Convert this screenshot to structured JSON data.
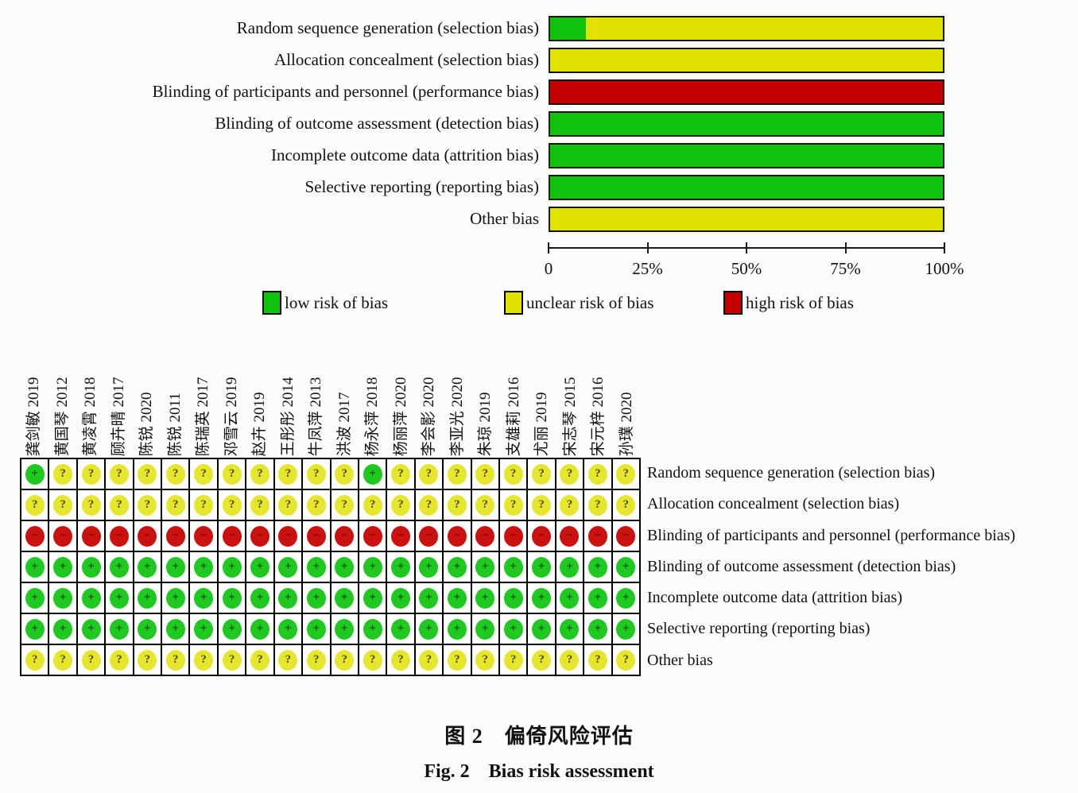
{
  "colors": {
    "low": "#0ec40e",
    "unclear": "#e2e200",
    "high": "#c40000",
    "circle_low": "#1fc91f",
    "circle_unclear": "#e6e62e",
    "circle_high": "#cc1111",
    "symbol_dark": "#1a1a00"
  },
  "chart_data": {
    "type": "bar",
    "orientation": "horizontal-stacked",
    "title": "",
    "categories": [
      "Random sequence generation (selection bias)",
      "Allocation concealment (selection bias)",
      "Blinding of participants and personnel (performance bias)",
      "Blinding of outcome assessment (detection bias)",
      "Incomplete outcome data (attrition bias)",
      "Selective reporting (reporting bias)",
      "Other bias"
    ],
    "series": [
      {
        "name": "low risk of bias",
        "color_key": "low",
        "values": [
          9.1,
          0,
          0,
          100,
          100,
          100,
          0
        ]
      },
      {
        "name": "unclear risk of bias",
        "color_key": "unclear",
        "values": [
          90.9,
          100,
          0,
          0,
          0,
          0,
          100
        ]
      },
      {
        "name": "high risk of bias",
        "color_key": "high",
        "values": [
          0,
          0,
          100,
          0,
          0,
          0,
          0
        ]
      }
    ],
    "xlim": [
      0,
      100
    ],
    "ticks": [
      {
        "label": "0",
        "value": 0
      },
      {
        "label": "25%",
        "value": 25
      },
      {
        "label": "50%",
        "value": 50
      },
      {
        "label": "75%",
        "value": 75
      },
      {
        "label": "100%",
        "value": 100
      }
    ],
    "legend": [
      {
        "label": "low risk of bias",
        "color_key": "low"
      },
      {
        "label": "unclear risk of bias",
        "color_key": "unclear"
      },
      {
        "label": "high risk of bias",
        "color_key": "high"
      }
    ],
    "legend_position": "bottom"
  },
  "matrix": {
    "studies": [
      "龚剑敏 2019",
      "黄国琴 2012",
      "黄凌霄 2018",
      "顾卉晴 2017",
      "陈锐 2020",
      "陈锐 2011",
      "陈瑞英 2017",
      "邓雪云 2019",
      "赵卉 2019",
      "王彤彤 2014",
      "牛凤萍 2013",
      "洪波 2017",
      "杨永萍 2018",
      "杨丽萍 2020",
      "李会影 2020",
      "李亚光 2020",
      "朱琼 2019",
      "支雄莉 2016",
      "尤丽 2019",
      "宋志琴 2015",
      "宋元梓 2016",
      "孙璞 2020"
    ],
    "domains": [
      "Random sequence generation (selection bias)",
      "Allocation concealment (selection bias)",
      "Blinding of participants and personnel (performance bias)",
      "Blinding of outcome assessment (detection bias)",
      "Incomplete outcome data (attrition bias)",
      "Selective reporting (reporting bias)",
      "Other bias"
    ],
    "judgments": [
      [
        "L",
        "U",
        "U",
        "U",
        "U",
        "U",
        "U",
        "U",
        "U",
        "U",
        "U",
        "U",
        "L",
        "U",
        "U",
        "U",
        "U",
        "U",
        "U",
        "U",
        "U",
        "U"
      ],
      [
        "U",
        "U",
        "U",
        "U",
        "U",
        "U",
        "U",
        "U",
        "U",
        "U",
        "U",
        "U",
        "U",
        "U",
        "U",
        "U",
        "U",
        "U",
        "U",
        "U",
        "U",
        "U"
      ],
      [
        "H",
        "H",
        "H",
        "H",
        "H",
        "H",
        "H",
        "H",
        "H",
        "H",
        "H",
        "H",
        "H",
        "H",
        "H",
        "H",
        "H",
        "H",
        "H",
        "H",
        "H",
        "H"
      ],
      [
        "L",
        "L",
        "L",
        "L",
        "L",
        "L",
        "L",
        "L",
        "L",
        "L",
        "L",
        "L",
        "L",
        "L",
        "L",
        "L",
        "L",
        "L",
        "L",
        "L",
        "L",
        "L"
      ],
      [
        "L",
        "L",
        "L",
        "L",
        "L",
        "L",
        "L",
        "L",
        "L",
        "L",
        "L",
        "L",
        "L",
        "L",
        "L",
        "L",
        "L",
        "L",
        "L",
        "L",
        "L",
        "L"
      ],
      [
        "L",
        "L",
        "L",
        "L",
        "L",
        "L",
        "L",
        "L",
        "L",
        "L",
        "L",
        "L",
        "L",
        "L",
        "L",
        "L",
        "L",
        "L",
        "L",
        "L",
        "L",
        "L"
      ],
      [
        "U",
        "U",
        "U",
        "U",
        "U",
        "U",
        "U",
        "U",
        "U",
        "U",
        "U",
        "U",
        "U",
        "U",
        "U",
        "U",
        "U",
        "U",
        "U",
        "U",
        "U",
        "U"
      ]
    ],
    "symbols": {
      "L": "+",
      "U": "?",
      "H": "−"
    }
  },
  "caption": {
    "line1": "图 2　偏倚风险评估",
    "line2": "Fig. 2　Bias risk assessment"
  }
}
